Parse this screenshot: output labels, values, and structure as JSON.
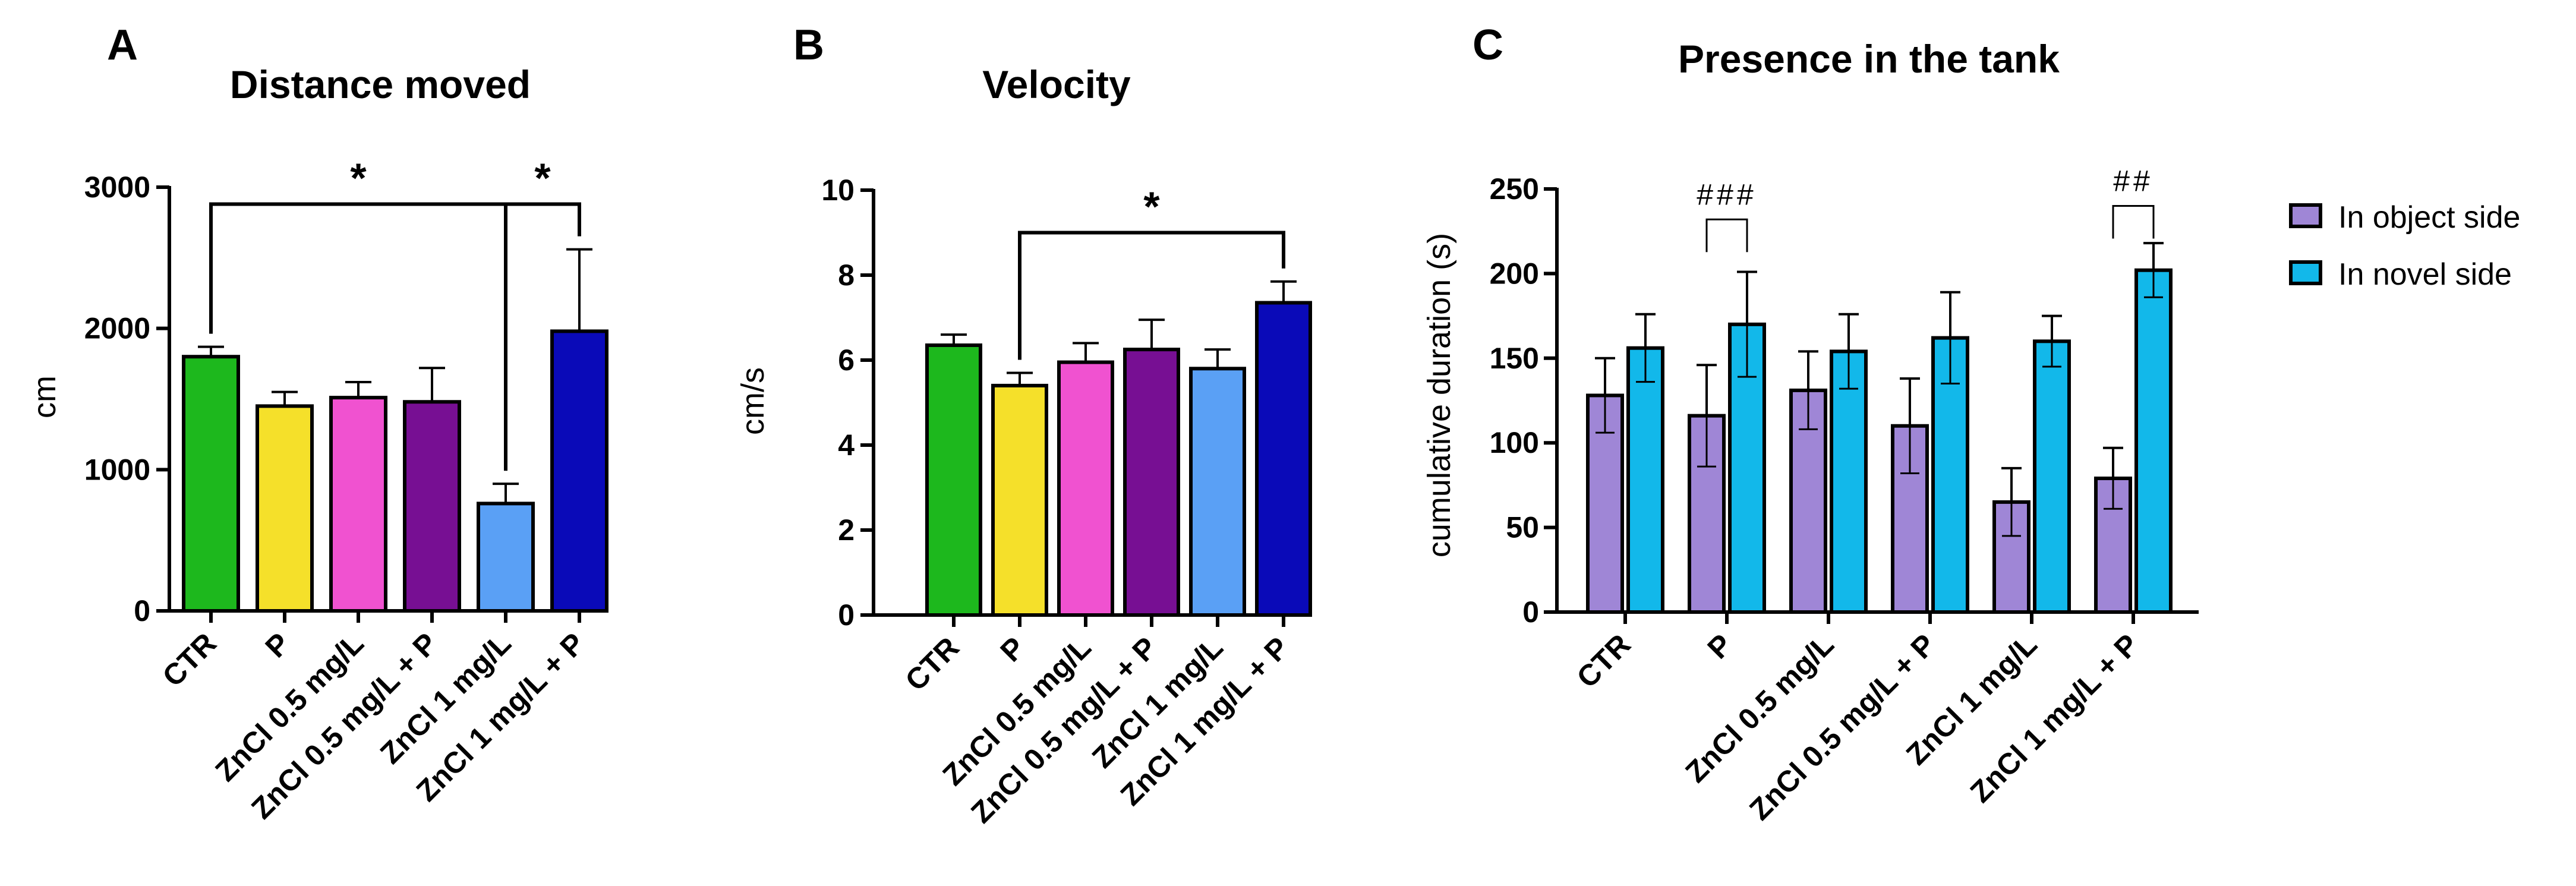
{
  "chart_data": [
    {
      "panel": "A",
      "type": "bar",
      "title": "Distance moved",
      "ylabel": "cm",
      "xlabel": "",
      "ylim": [
        0,
        3000
      ],
      "yticks": [
        0,
        1000,
        2000,
        3000
      ],
      "categories": [
        "CTR",
        "P",
        "ZnCl 0.5 mg/L",
        "ZnCl 0.5 mg/L + P",
        "ZnCl 1 mg/L",
        "ZnCl 1 mg/L + P"
      ],
      "values": [
        1800,
        1450,
        1510,
        1480,
        760,
        1980
      ],
      "errors": [
        70,
        100,
        110,
        240,
        140,
        580
      ],
      "colors": [
        "#1db81d",
        "#f5e02a",
        "#f052d0",
        "#770f93",
        "#5aa0f5",
        "#0a0ab8"
      ],
      "significance": [
        {
          "from": 0,
          "to": 4,
          "label": "*",
          "level": 2880
        },
        {
          "from": 4,
          "to": 5,
          "label": "*",
          "level": 2880
        }
      ]
    },
    {
      "panel": "B",
      "type": "bar",
      "title": "Velocity",
      "ylabel": "cm/s",
      "xlabel": "",
      "ylim": [
        0,
        10
      ],
      "yticks": [
        0,
        2,
        4,
        6,
        8,
        10
      ],
      "categories": [
        "CTR",
        "P",
        "ZnCl 0.5 mg/L",
        "ZnCl 0.5 mg/L + P",
        "ZnCl 1 mg/L",
        "ZnCl 1 mg/L + P"
      ],
      "values": [
        6.35,
        5.4,
        5.95,
        6.25,
        5.8,
        7.35
      ],
      "errors": [
        0.25,
        0.3,
        0.45,
        0.7,
        0.45,
        0.5
      ],
      "colors": [
        "#1db81d",
        "#f5e02a",
        "#f052d0",
        "#770f93",
        "#5aa0f5",
        "#0a0ab8"
      ],
      "significance": [
        {
          "from": 1,
          "to": 5,
          "label": "*",
          "level": 9.0
        }
      ]
    },
    {
      "panel": "C",
      "type": "bar",
      "title": "Presence in the tank",
      "ylabel": "cumulative duration (s)",
      "xlabel": "",
      "ylim": [
        0,
        250
      ],
      "yticks": [
        0,
        50,
        100,
        150,
        200,
        250
      ],
      "categories": [
        "CTR",
        "P",
        "ZnCl 0.5 mg/L",
        "ZnCl 0.5 mg/L + P",
        "ZnCl 1 mg/L",
        "ZnCl 1 mg/L + P"
      ],
      "series": [
        {
          "name": "In object side",
          "color": "#9f86d6",
          "values": [
            128,
            116,
            131,
            110,
            65,
            79
          ],
          "errors": [
            22,
            30,
            23,
            28,
            20,
            18
          ]
        },
        {
          "name": "In novel side",
          "color": "#12b8ea",
          "values": [
            156,
            170,
            154,
            162,
            160,
            202
          ],
          "errors": [
            20,
            31,
            22,
            27,
            15,
            16
          ]
        }
      ],
      "significance": [
        {
          "group": 1,
          "label": "###",
          "level": 232
        },
        {
          "group": 5,
          "label": "##",
          "level": 240
        }
      ],
      "legend": "right"
    }
  ]
}
